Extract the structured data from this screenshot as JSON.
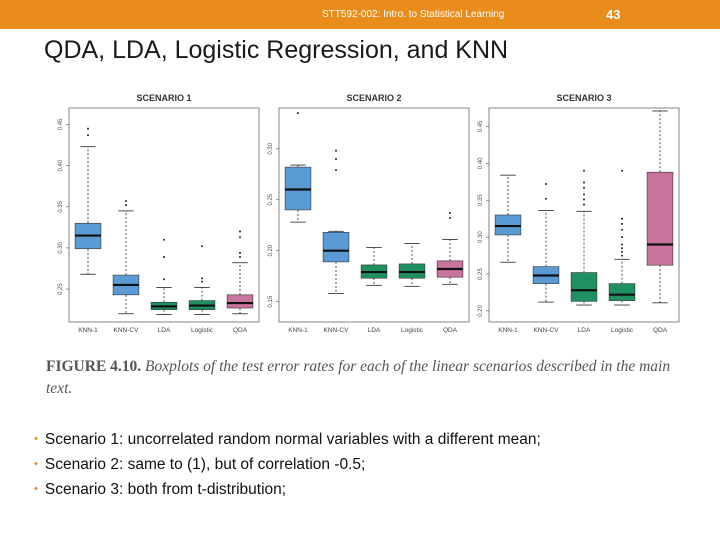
{
  "header": {
    "course": "STT592-002: Intro. to Statistical Learning",
    "page_number": "43"
  },
  "slide_title": "QDA, LDA, Logistic Regression, and KNN",
  "caption": {
    "label": "FIGURE 4.10.",
    "text": "Boxplots of the test error rates for each of the linear scenarios described in the main text."
  },
  "bullets": [
    "Scenario 1: uncorrelated random normal variables with a different mean;",
    "Scenario 2: same to (1), but of correlation -0.5;",
    "Scenario 3: both from t-distribution;"
  ],
  "colors": {
    "header_bar": "#e98c1c",
    "knn": "#5b9bd5",
    "lda_logistic": "#1f9160",
    "qda": "#c9739e"
  },
  "chart_data": [
    {
      "type": "boxplot",
      "title": "SCENARIO 1",
      "categories": [
        "KNN-1",
        "KNN-CV",
        "LDA",
        "Logistic",
        "QDA"
      ],
      "yticks": [
        "0.25",
        "0.30",
        "0.35",
        "0.40",
        "0.45"
      ],
      "ylim": [
        0.21,
        0.47
      ],
      "boxes": [
        {
          "whisker_low": 0.268,
          "q1": 0.299,
          "median": 0.315,
          "q3": 0.33,
          "whisker_high": 0.423,
          "outliers": [
            0.437,
            0.445
          ]
        },
        {
          "whisker_low": 0.22,
          "q1": 0.243,
          "median": 0.255,
          "q3": 0.267,
          "whisker_high": 0.345,
          "outliers": [
            0.352,
            0.357
          ]
        },
        {
          "whisker_low": 0.219,
          "q1": 0.225,
          "median": 0.229,
          "q3": 0.234,
          "whisker_high": 0.252,
          "outliers": [
            0.262,
            0.289,
            0.31
          ]
        },
        {
          "whisker_low": 0.219,
          "q1": 0.225,
          "median": 0.23,
          "q3": 0.236,
          "whisker_high": 0.252,
          "outliers": [
            0.259,
            0.263,
            0.302
          ]
        },
        {
          "whisker_low": 0.22,
          "q1": 0.227,
          "median": 0.233,
          "q3": 0.243,
          "whisker_high": 0.282,
          "outliers": [
            0.289,
            0.294,
            0.313,
            0.32
          ]
        }
      ]
    },
    {
      "type": "boxplot",
      "title": "SCENARIO 2",
      "categories": [
        "KNN-1",
        "KNN-CV",
        "LDA",
        "Logistic",
        "QDA"
      ],
      "yticks": [
        "0.15",
        "0.20",
        "0.25",
        "0.30"
      ],
      "ylim": [
        0.13,
        0.34
      ],
      "boxes": [
        {
          "whisker_low": 0.228,
          "q1": 0.24,
          "median": 0.26,
          "q3": 0.282,
          "whisker_high": 0.284,
          "outliers": [
            0.335
          ]
        },
        {
          "whisker_low": 0.158,
          "q1": 0.189,
          "median": 0.2,
          "q3": 0.218,
          "whisker_high": 0.219,
          "outliers": [
            0.279,
            0.29,
            0.298
          ]
        },
        {
          "whisker_low": 0.166,
          "q1": 0.173,
          "median": 0.179,
          "q3": 0.186,
          "whisker_high": 0.203,
          "outliers": []
        },
        {
          "whisker_low": 0.165,
          "q1": 0.173,
          "median": 0.179,
          "q3": 0.187,
          "whisker_high": 0.207,
          "outliers": []
        },
        {
          "whisker_low": 0.167,
          "q1": 0.174,
          "median": 0.182,
          "q3": 0.19,
          "whisker_high": 0.211,
          "outliers": [
            0.232,
            0.237
          ]
        }
      ]
    },
    {
      "type": "boxplot",
      "title": "SCENARIO 3",
      "categories": [
        "KNN-1",
        "KNN-CV",
        "LDA",
        "Logistic",
        "QDA"
      ],
      "yticks": [
        "0.20",
        "0.25",
        "0.30",
        "0.35",
        "0.40",
        "0.45"
      ],
      "ylim": [
        0.185,
        0.475
      ],
      "boxes": [
        {
          "whisker_low": 0.266,
          "q1": 0.303,
          "median": 0.315,
          "q3": 0.33,
          "whisker_high": 0.384,
          "outliers": []
        },
        {
          "whisker_low": 0.212,
          "q1": 0.237,
          "median": 0.248,
          "q3": 0.26,
          "whisker_high": 0.336,
          "outliers": [
            0.352,
            0.372
          ]
        },
        {
          "whisker_low": 0.208,
          "q1": 0.213,
          "median": 0.228,
          "q3": 0.252,
          "whisker_high": 0.335,
          "outliers": [
            0.344,
            0.351,
            0.358,
            0.367,
            0.374,
            0.39
          ]
        },
        {
          "whisker_low": 0.208,
          "q1": 0.214,
          "median": 0.222,
          "q3": 0.237,
          "whisker_high": 0.27,
          "outliers": [
            0.275,
            0.28,
            0.285,
            0.29,
            0.3,
            0.31,
            0.318,
            0.325,
            0.39
          ]
        },
        {
          "whisker_low": 0.211,
          "q1": 0.262,
          "median": 0.29,
          "q3": 0.388,
          "whisker_high": 0.471,
          "outliers": []
        }
      ]
    }
  ]
}
